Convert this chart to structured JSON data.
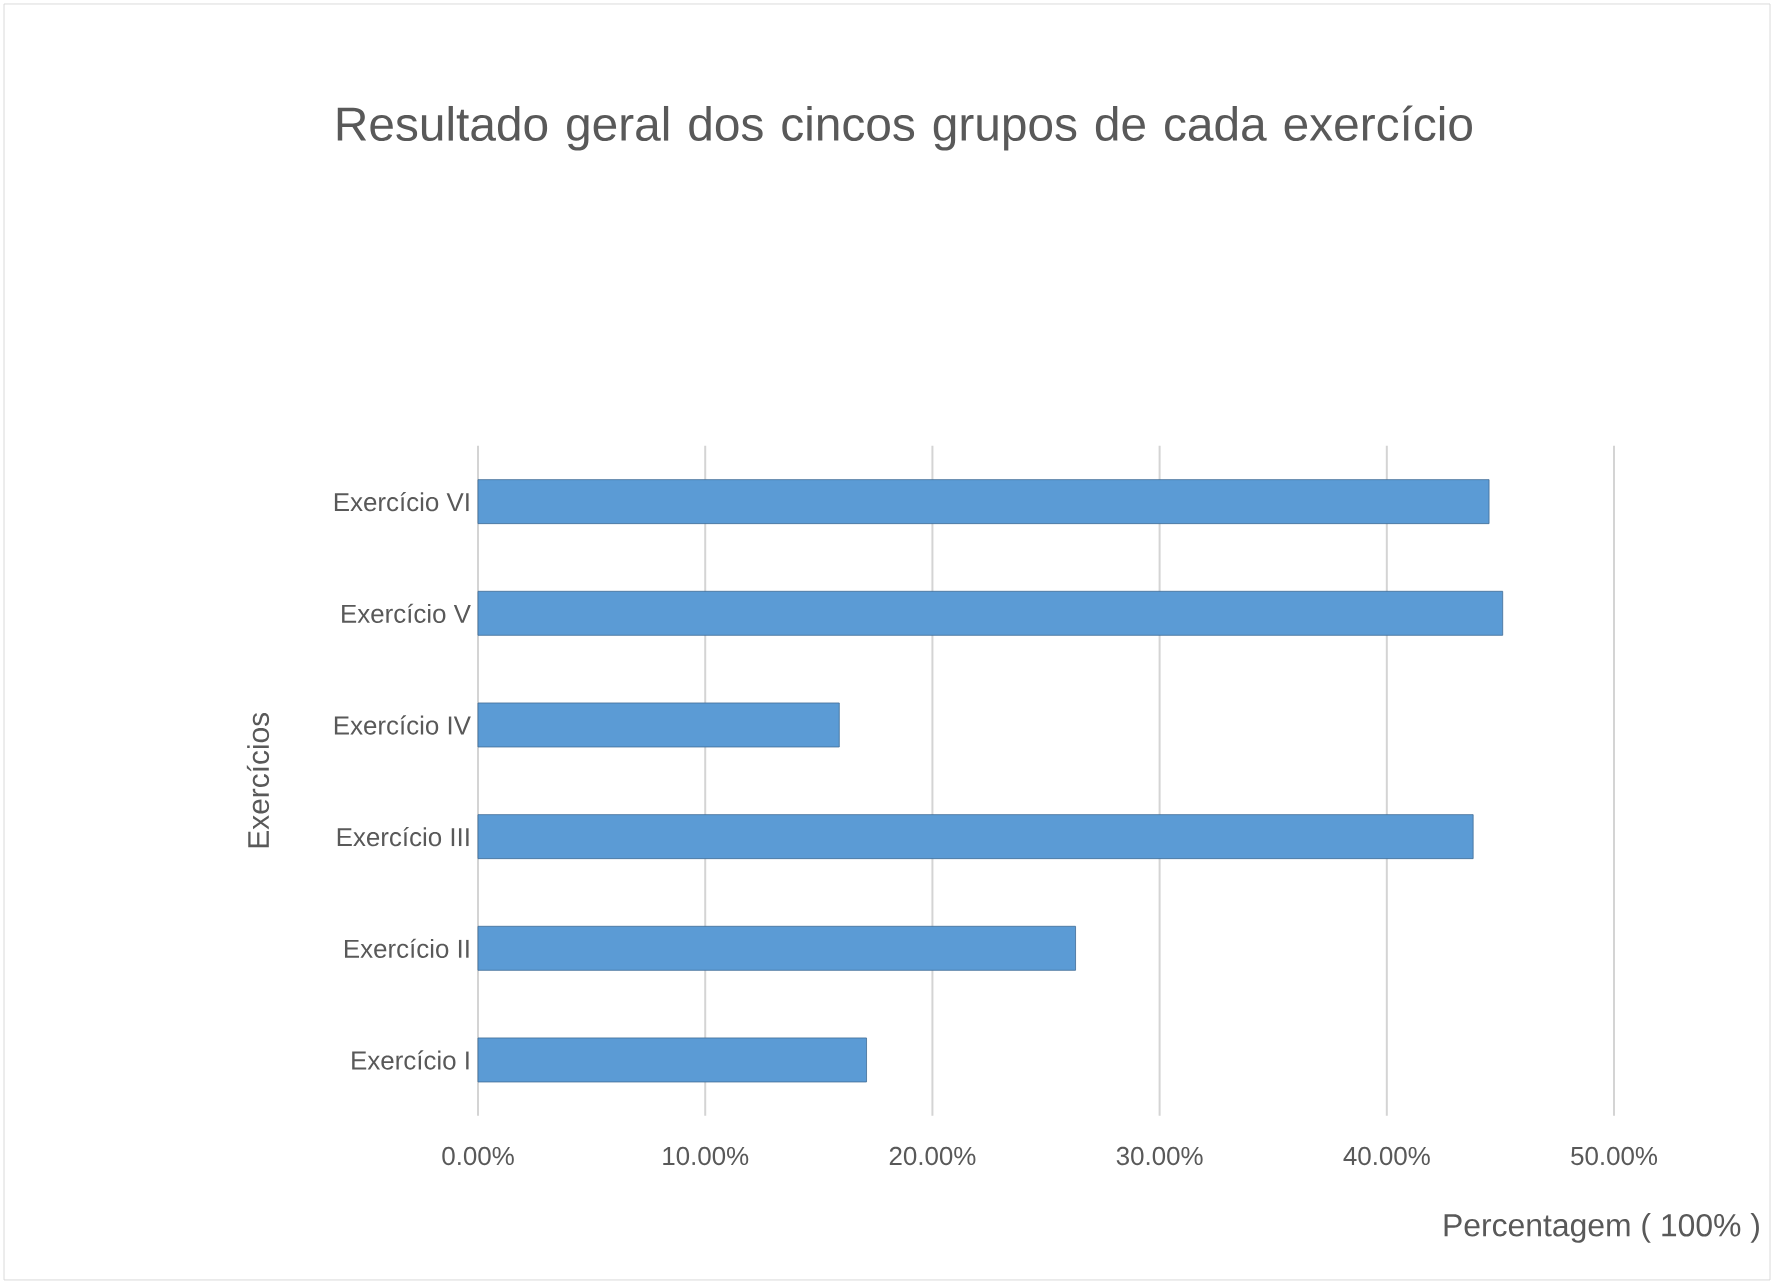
{
  "chart_data": {
    "type": "bar",
    "orientation": "horizontal",
    "title": "Resultado geral dos cincos grupos de cada exercício",
    "xlabel": "Percentagem ( 100% )",
    "ylabel": "Exercícios",
    "categories": [
      "Exercício VI",
      "Exercício V",
      "Exercício IV",
      "Exercício III",
      "Exercício II",
      "Exercício I"
    ],
    "values": [
      44.5,
      45.1,
      15.9,
      43.8,
      26.3,
      17.1
    ],
    "color": "#5b9bd5",
    "xlim": [
      0,
      50
    ],
    "xticks": [
      {
        "value": 0,
        "label": "0.00%"
      },
      {
        "value": 10,
        "label": "10.00%"
      },
      {
        "value": 20,
        "label": "20.00%"
      },
      {
        "value": 30,
        "label": "30.00%"
      },
      {
        "value": 40,
        "label": "40.00%"
      },
      {
        "value": 50,
        "label": "50.00%"
      }
    ],
    "grid": "x"
  }
}
